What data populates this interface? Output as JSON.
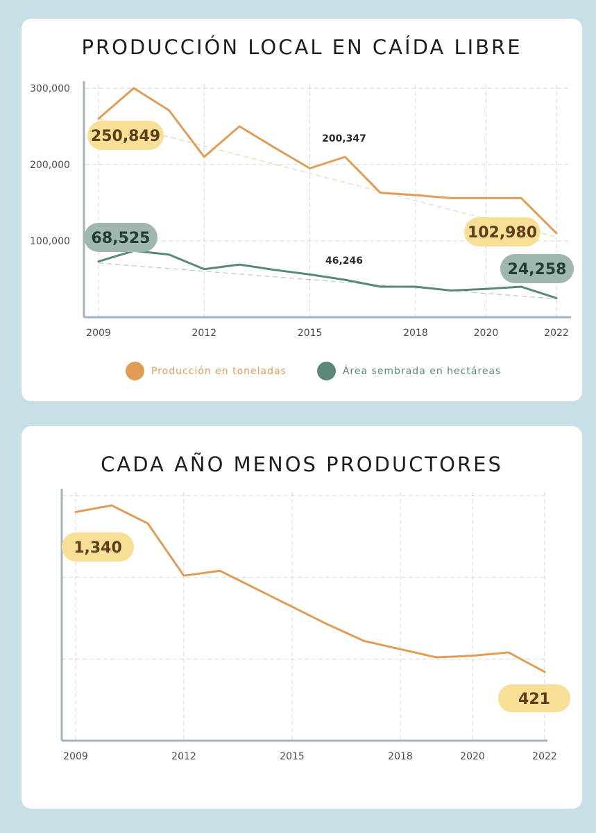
{
  "colors": {
    "produccion": "#e19d55",
    "area": "#5a8878",
    "pill_orange_bg": "#f7df96",
    "pill_orange_text": "#5a3f1a",
    "pill_green_bg": "#9fb7ad",
    "pill_green_text": "#233d33",
    "grid": "#d6d6d6",
    "axis": "#a4b0c4"
  },
  "chart_data": [
    {
      "type": "line",
      "title": "PRODUCCIÓN LOCAL EN CAÍDA LIBRE",
      "x_ticks": [
        "2009",
        "2012",
        "2015",
        "2018",
        "2020",
        "2022"
      ],
      "y_ticks": [
        "300,000",
        "200,000",
        "100,000"
      ],
      "ylim": [
        0,
        300000
      ],
      "series": [
        {
          "name": "Producción en toneladas",
          "x": [
            2009,
            2010,
            2011,
            2012,
            2013,
            2014,
            2015,
            2016,
            2017,
            2018,
            2019,
            2020,
            2021,
            2022
          ],
          "values": [
            260000,
            300000,
            271000,
            210000,
            250000,
            222000,
            195000,
            210000,
            163000,
            160000,
            156000,
            156000,
            156000,
            110000
          ]
        },
        {
          "name": "Área sembrada en hectáreas",
          "x": [
            2009,
            2010,
            2011,
            2012,
            2013,
            2014,
            2015,
            2016,
            2017,
            2018,
            2019,
            2020,
            2021,
            2022
          ],
          "values": [
            73000,
            87000,
            82000,
            63000,
            69000,
            62000,
            56000,
            49000,
            40000,
            40000,
            35000,
            37000,
            40000,
            25000
          ]
        }
      ],
      "trendlines": [
        {
          "series": "Producción en toneladas",
          "from": [
            2009,
            260000
          ],
          "to": [
            2022,
            105000
          ]
        },
        {
          "series": "Área sembrada en hectáreas",
          "from": [
            2009,
            71000
          ],
          "to": [
            2022,
            24000
          ]
        }
      ],
      "annotations": [
        {
          "text": "250,849",
          "style": "orange-pill"
        },
        {
          "text": "102,980",
          "style": "orange-pill"
        },
        {
          "text": "200,347",
          "style": "plain"
        },
        {
          "text": "68,525",
          "style": "green-pill"
        },
        {
          "text": "24,258",
          "style": "green-pill"
        },
        {
          "text": "46,246",
          "style": "plain"
        }
      ],
      "legend": [
        "Producción en toneladas",
        "Área sembrada en hectáreas"
      ],
      "grid": true
    },
    {
      "type": "line",
      "title": "CADA AÑO MENOS PRODUCTORES",
      "x_ticks": [
        "2009",
        "2012",
        "2015",
        "2018",
        "2020",
        "2022"
      ],
      "ylim": [
        0,
        1500
      ],
      "series": [
        {
          "x": [
            2009,
            2010,
            2011,
            2012,
            2013,
            2014,
            2015,
            2016,
            2017,
            2018,
            2019,
            2020,
            2021,
            2022
          ],
          "values": [
            1400,
            1440,
            1330,
            1010,
            1040,
            930,
            820,
            710,
            610,
            560,
            510,
            520,
            540,
            421
          ]
        }
      ],
      "annotations": [
        {
          "text": "1,340",
          "style": "orange-pill"
        },
        {
          "text": "421",
          "style": "orange-pill"
        }
      ],
      "grid": true
    }
  ]
}
